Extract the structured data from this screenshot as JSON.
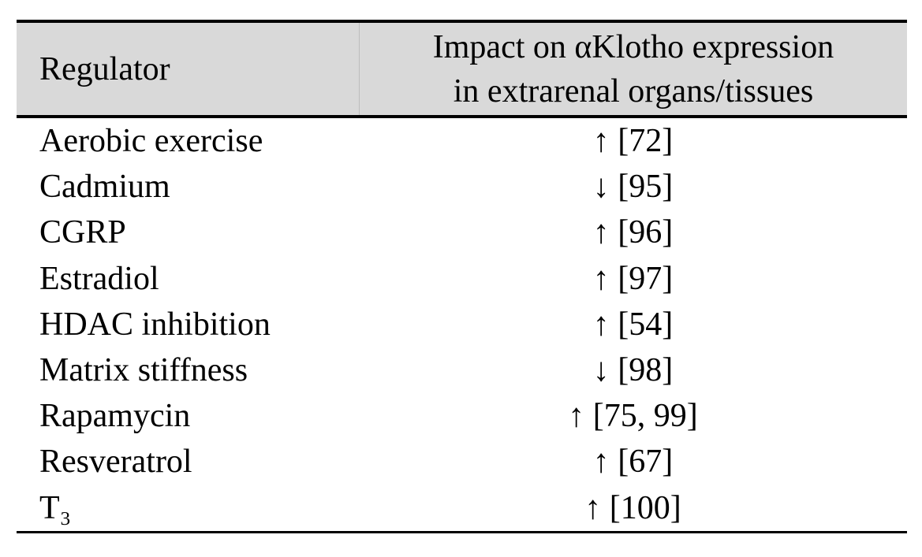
{
  "table": {
    "style": {
      "header_background": "#d9d9d9",
      "border_color": "#000000",
      "text_color": "#000000"
    },
    "header": {
      "regulator": "Regulator",
      "impact_line1": "Impact on αKlotho expression",
      "impact_line2": "in extrarenal organs/tissues"
    },
    "rows": [
      {
        "regulator": "Aerobic exercise",
        "impact": "↑ [72]"
      },
      {
        "regulator": "Cadmium",
        "impact": "↓ [95]"
      },
      {
        "regulator": "CGRP",
        "impact": "↑ [96]"
      },
      {
        "regulator": "Estradiol",
        "impact": "↑ [97]"
      },
      {
        "regulator": "HDAC inhibition",
        "impact": "↑ [54]"
      },
      {
        "regulator": "Matrix stiffness",
        "impact": "↓ [98]"
      },
      {
        "regulator": "Rapamycin",
        "impact": "↑ [75, 99]"
      },
      {
        "regulator": "Resveratrol",
        "impact": "↑ [67]"
      },
      {
        "regulator": "T₃",
        "impact": "↑ [100]"
      }
    ]
  }
}
